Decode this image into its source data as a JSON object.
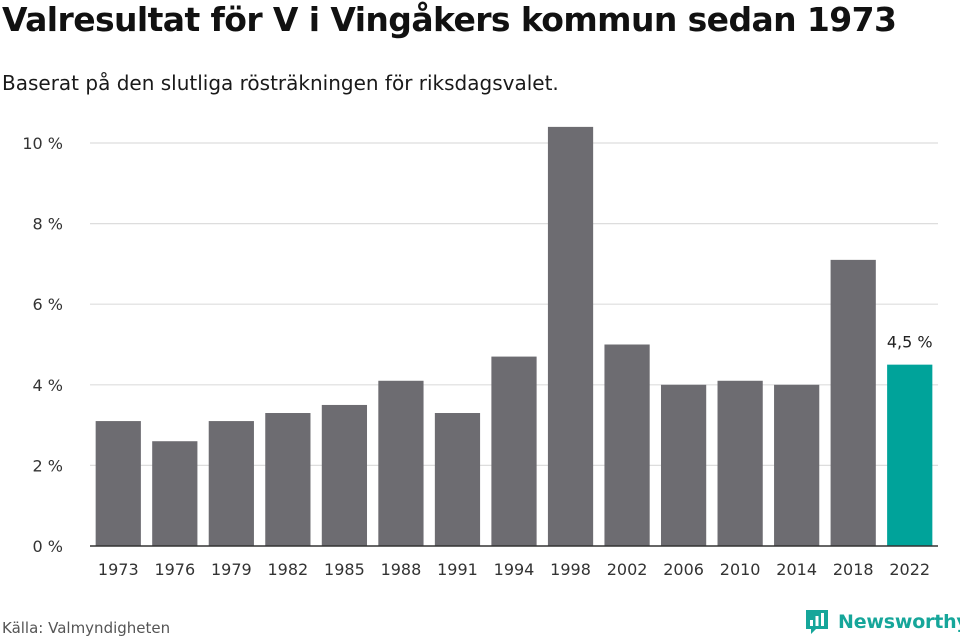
{
  "title": "Valresultat för V i Vingåkers kommun sedan 1973",
  "subtitle": "Baserat på den slutliga rösträkningen för riksdagsvalet.",
  "source": "Källa: Valmyndigheten",
  "brand": {
    "name": "Newsworthy",
    "icon": "newsworthy-logo-icon",
    "color": "#16a69a"
  },
  "colors": {
    "bar": "#6d6c71",
    "highlight": "#00a39a",
    "grid": "#dddddd",
    "axis": "#333333"
  },
  "chart_data": {
    "type": "bar",
    "categories": [
      "1973",
      "1976",
      "1979",
      "1982",
      "1985",
      "1988",
      "1991",
      "1994",
      "1998",
      "2002",
      "2006",
      "2010",
      "2014",
      "2018",
      "2022"
    ],
    "values": [
      3.1,
      2.6,
      3.1,
      3.3,
      3.5,
      4.1,
      3.3,
      4.7,
      10.4,
      5.0,
      4.0,
      4.1,
      4.0,
      7.1,
      4.5
    ],
    "ylim": [
      0,
      10
    ],
    "yticks": [
      0,
      2,
      4,
      6,
      8,
      10
    ],
    "ytick_labels": [
      "0 %",
      "2 %",
      "4 %",
      "6 %",
      "8 %",
      "10 %"
    ],
    "highlight_index": 14,
    "annotations": [
      {
        "category": "2022",
        "text": "4,5 %"
      }
    ],
    "grid": true,
    "legend": "none"
  }
}
